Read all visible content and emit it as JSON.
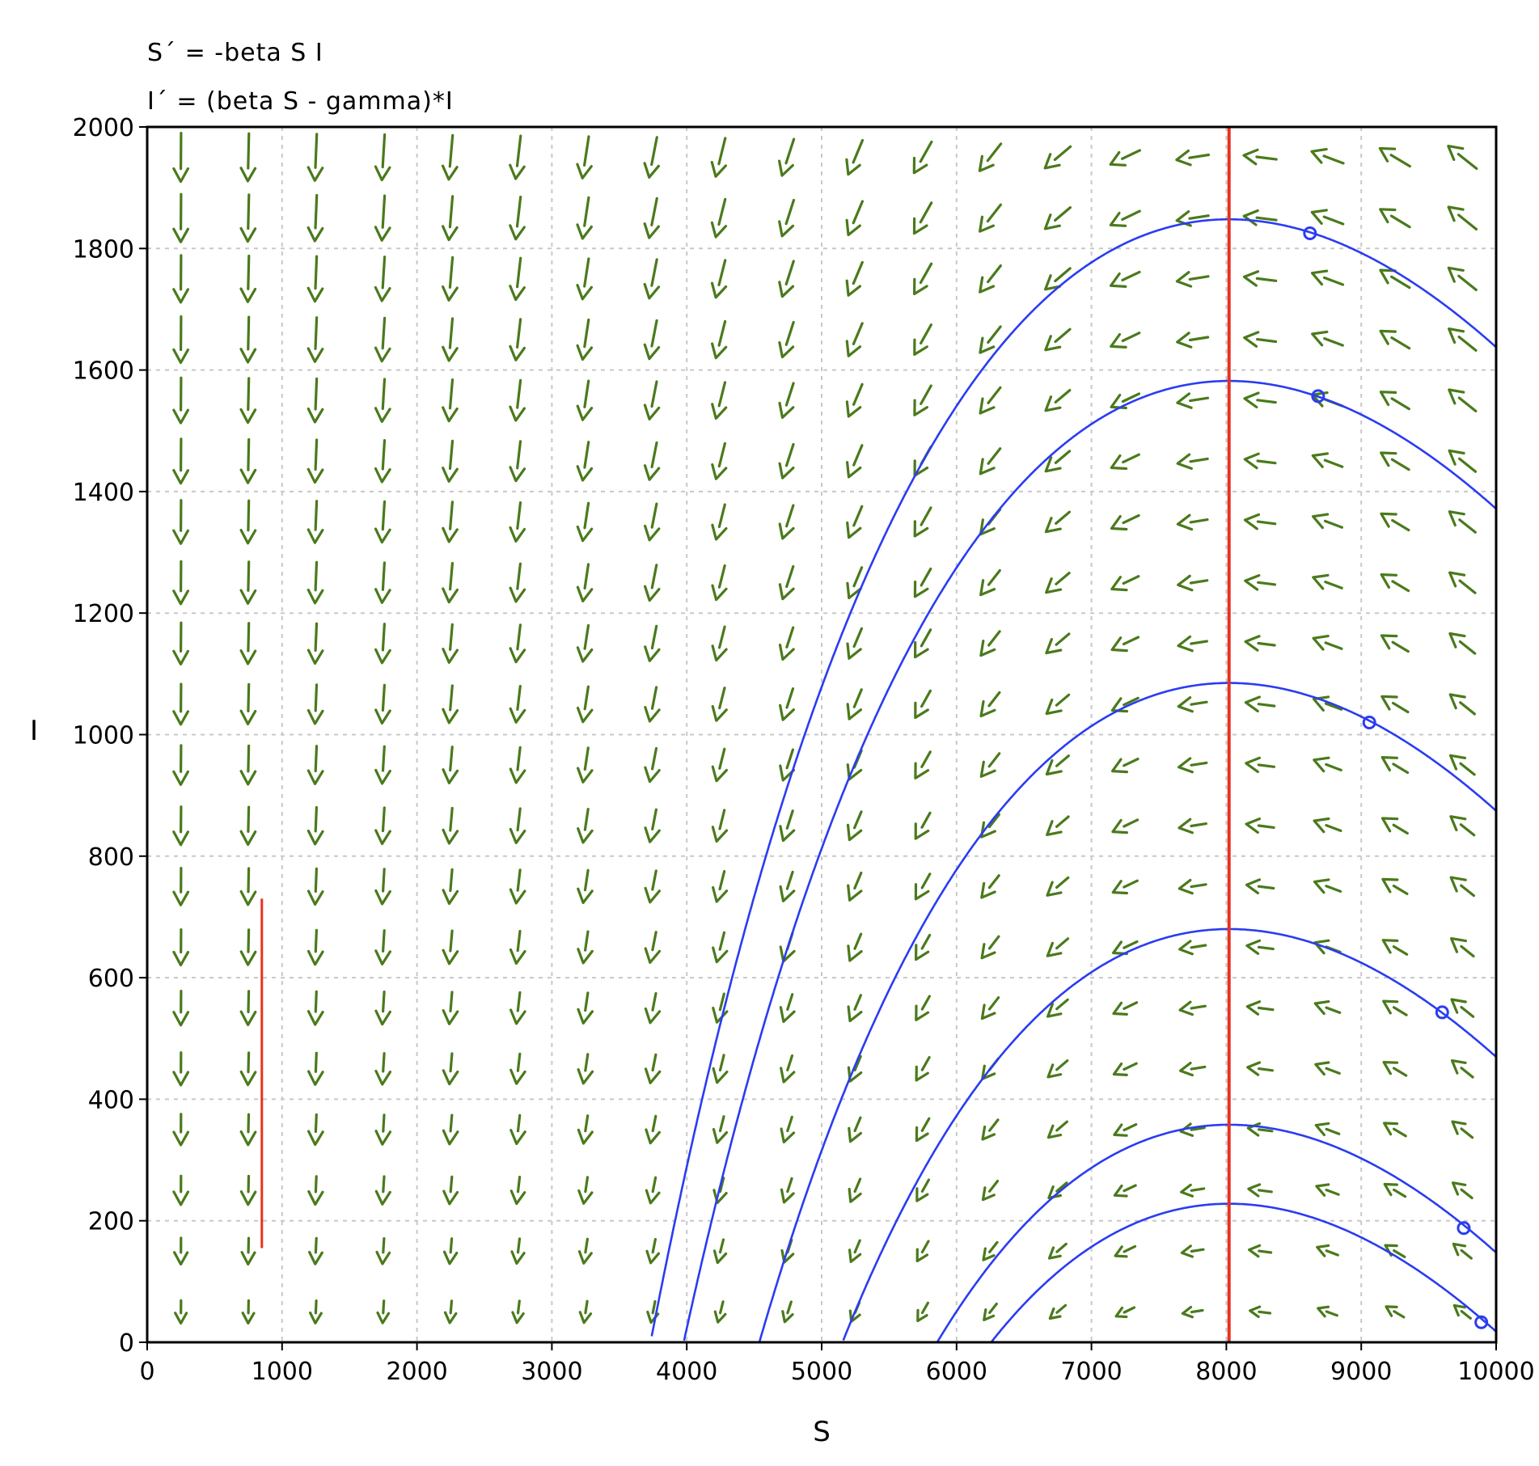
{
  "equations": {
    "line1": "S´ = -beta S I",
    "line2": "I´ = (beta S - gamma)*I"
  },
  "colors": {
    "arrow": "#4a7a1c",
    "trajectory": "#2a3cf2",
    "nullcline": "#e8321e",
    "grid": "#c8c8c8",
    "axis": "#000000"
  },
  "chart_data": {
    "type": "direction-field",
    "xlabel": "S",
    "ylabel": "I",
    "xlim": [
      0,
      10000
    ],
    "ylim": [
      0,
      2000
    ],
    "grid": true,
    "x_ticks": [
      "0",
      "1000",
      "2000",
      "3000",
      "4000",
      "5000",
      "6000",
      "7000",
      "8000",
      "9000",
      "10000"
    ],
    "y_ticks": [
      "0",
      "200",
      "400",
      "600",
      "800",
      "1000",
      "1200",
      "1400",
      "1600",
      "1800",
      "2000"
    ],
    "x_tick_values": [
      0,
      1000,
      2000,
      3000,
      4000,
      5000,
      6000,
      7000,
      8000,
      9000,
      10000
    ],
    "y_tick_values": [
      0,
      200,
      400,
      600,
      800,
      1000,
      1200,
      1400,
      1600,
      1800,
      2000
    ],
    "nullcline_S": 8020,
    "field_grid_S": [
      250,
      750,
      1250,
      1750,
      2250,
      2750,
      3250,
      3750,
      4250,
      4750,
      5250,
      5750,
      6250,
      6750,
      7250,
      7750,
      8250,
      8750,
      9250,
      9750
    ],
    "field_grid_I": [
      50,
      150,
      250,
      350,
      450,
      550,
      650,
      750,
      850,
      950,
      1050,
      1150,
      1250,
      1350,
      1450,
      1550,
      1650,
      1750,
      1850,
      1950
    ],
    "segment": {
      "S": 850,
      "I": [
        155,
        730
      ]
    },
    "trajectories": [
      {
        "start": [
          8620,
          1825
        ],
        "peak_I": 1848
      },
      {
        "start": [
          8680,
          1557
        ],
        "peak_I": 1582
      },
      {
        "start": [
          9060,
          1020
        ],
        "peak_I": 1085
      },
      {
        "start": [
          9600,
          543
        ],
        "peak_I": 680
      },
      {
        "start": [
          9760,
          188
        ],
        "peak_I": 358
      },
      {
        "start": [
          9890,
          33
        ],
        "peak_I": 228
      }
    ]
  }
}
